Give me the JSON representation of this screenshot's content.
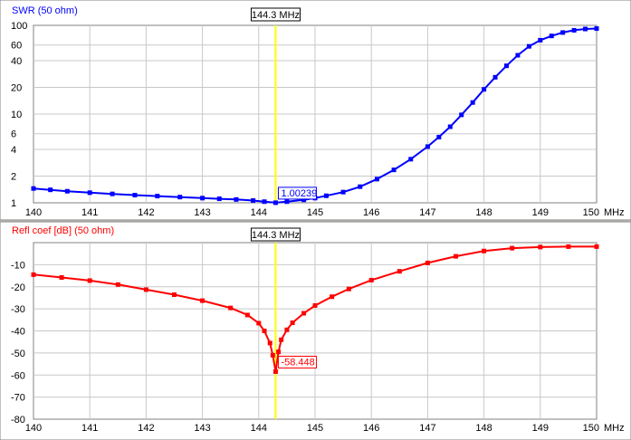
{
  "cursor": {
    "freq": 144.3,
    "label": "144.3 MHz"
  },
  "chart_data": [
    {
      "type": "line",
      "title": "SWR (50 ohm)",
      "xunit": "MHz",
      "xlim": [
        140,
        150
      ],
      "xticks": [
        140,
        141,
        142,
        143,
        144,
        145,
        146,
        147,
        148,
        149,
        150
      ],
      "ylim": [
        1,
        100
      ],
      "yscale": "log",
      "yticks": [
        1,
        2,
        4,
        6,
        10,
        20,
        40,
        60,
        100
      ],
      "grid": true,
      "color": "#0000ff",
      "marker_label": "1.00239",
      "x": [
        140,
        140.3,
        140.6,
        141,
        141.4,
        141.8,
        142.2,
        142.6,
        143,
        143.3,
        143.6,
        143.9,
        144.1,
        144.3,
        144.5,
        144.8,
        145,
        145.2,
        145.5,
        145.8,
        146.1,
        146.4,
        146.7,
        147,
        147.2,
        147.4,
        147.6,
        147.8,
        148,
        148.2,
        148.4,
        148.6,
        148.8,
        149,
        149.2,
        149.4,
        149.6,
        149.8,
        150
      ],
      "y": [
        1.45,
        1.4,
        1.35,
        1.3,
        1.26,
        1.22,
        1.19,
        1.16,
        1.13,
        1.11,
        1.09,
        1.06,
        1.03,
        1.00239,
        1.03,
        1.08,
        1.13,
        1.2,
        1.32,
        1.52,
        1.85,
        2.35,
        3.1,
        4.3,
        5.5,
        7.2,
        9.8,
        13.5,
        19,
        26,
        35,
        46,
        58,
        68,
        76,
        83,
        88,
        91,
        92
      ]
    },
    {
      "type": "line",
      "title": "Refl coef [dB] (50 ohm)",
      "xunit": "MHz",
      "xlim": [
        140,
        150
      ],
      "xticks": [
        140,
        141,
        142,
        143,
        144,
        145,
        146,
        147,
        148,
        149,
        150
      ],
      "ylim": [
        -80,
        0
      ],
      "yticks": [
        -80,
        -70,
        -60,
        -50,
        -40,
        -30,
        -20,
        -10
      ],
      "grid": true,
      "color": "#ff0000",
      "marker_label": "-58.448",
      "x": [
        140,
        140.5,
        141,
        141.5,
        142,
        142.5,
        143,
        143.5,
        143.8,
        144,
        144.1,
        144.2,
        144.25,
        144.3,
        144.35,
        144.4,
        144.5,
        144.6,
        144.8,
        145,
        145.3,
        145.6,
        146,
        146.5,
        147,
        147.5,
        148,
        148.5,
        149,
        149.5,
        150
      ],
      "y": [
        -14.5,
        -15.8,
        -17.2,
        -19,
        -21.3,
        -23.6,
        -26.3,
        -29.6,
        -32.8,
        -36.5,
        -40,
        -45.5,
        -51,
        -58.448,
        -49.5,
        -44,
        -39.5,
        -36.3,
        -32,
        -28.5,
        -24.5,
        -21,
        -17,
        -13,
        -9.2,
        -6.2,
        -3.8,
        -2.5,
        -2,
        -1.8,
        -1.8
      ]
    }
  ]
}
